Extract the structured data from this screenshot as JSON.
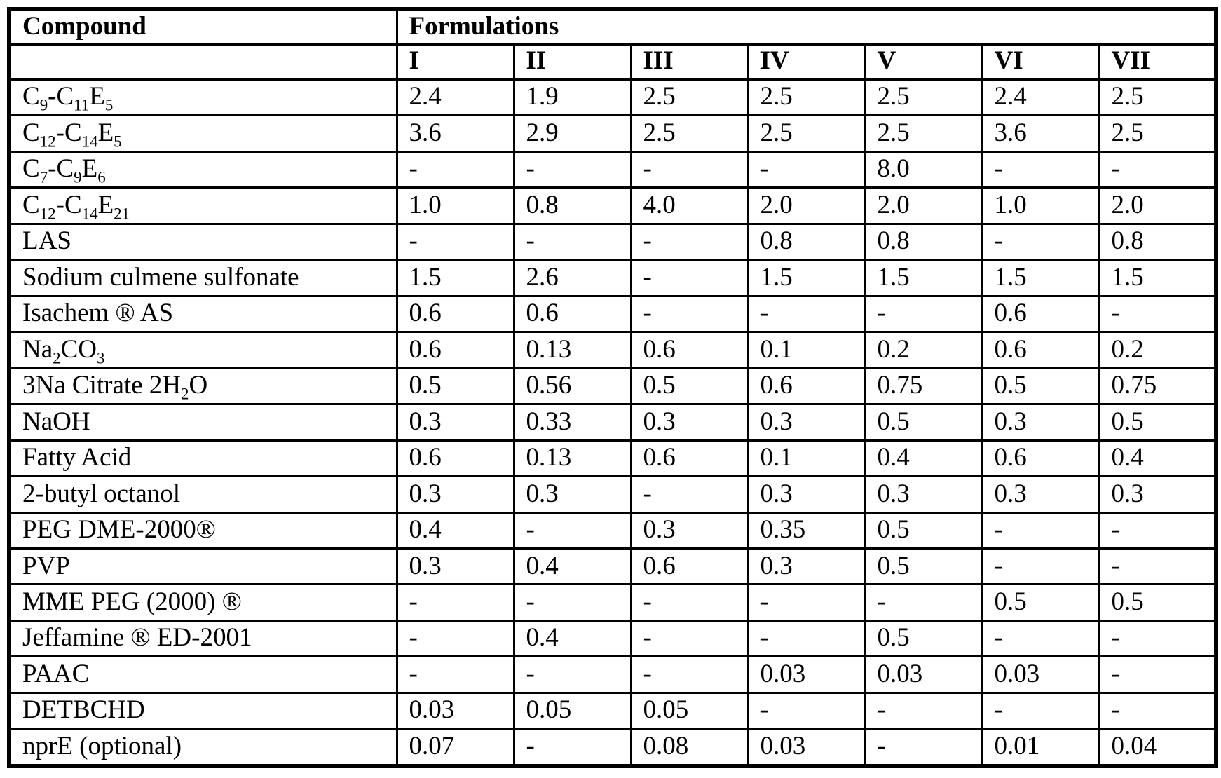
{
  "table": {
    "compound_header": "Compound",
    "formulations_header": "Formulations",
    "formulation_columns": [
      "I",
      "II",
      "III",
      "IV",
      "V",
      "VI",
      "VII"
    ],
    "rows": [
      {
        "compound_html": "C<sub>9</sub>-C<sub>11</sub>E<sub>5</sub>",
        "values": [
          "2.4",
          "1.9",
          "2.5",
          "2.5",
          "2.5",
          "2.4",
          "2.5"
        ]
      },
      {
        "compound_html": "C<sub>12</sub>-C<sub>14</sub>E<sub>5</sub>",
        "values": [
          "3.6",
          "2.9",
          "2.5",
          "2.5",
          "2.5",
          "3.6",
          "2.5"
        ]
      },
      {
        "compound_html": "C<sub>7</sub>-C<sub>9</sub>E<sub>6</sub>",
        "values": [
          "-",
          "-",
          "-",
          "-",
          "8.0",
          "-",
          "-"
        ]
      },
      {
        "compound_html": "C<sub>12</sub>-C<sub>14</sub>E<sub>21</sub>",
        "values": [
          "1.0",
          "0.8",
          "4.0",
          "2.0",
          "2.0",
          "1.0",
          "2.0"
        ]
      },
      {
        "compound_html": "LAS",
        "values": [
          "-",
          "-",
          "-",
          "0.8",
          "0.8",
          "-",
          "0.8"
        ]
      },
      {
        "compound_html": "Sodium culmene sulfonate",
        "values": [
          "1.5",
          "2.6",
          "-",
          "1.5",
          "1.5",
          "1.5",
          "1.5"
        ]
      },
      {
        "compound_html": "Isachem ® AS",
        "values": [
          "0.6",
          "0.6",
          "-",
          "-",
          "-",
          "0.6",
          "-"
        ]
      },
      {
        "compound_html": "Na<sub>2</sub>CO<sub>3</sub>",
        "values": [
          "0.6",
          "0.13",
          "0.6",
          "0.1",
          "0.2",
          "0.6",
          "0.2"
        ]
      },
      {
        "compound_html": "3Na Citrate 2H<sub>2</sub>O",
        "values": [
          "0.5",
          "0.56",
          "0.5",
          "0.6",
          "0.75",
          "0.5",
          "0.75"
        ]
      },
      {
        "compound_html": "NaOH",
        "values": [
          "0.3",
          "0.33",
          "0.3",
          "0.3",
          "0.5",
          "0.3",
          "0.5"
        ]
      },
      {
        "compound_html": "Fatty Acid",
        "values": [
          "0.6",
          "0.13",
          "0.6",
          "0.1",
          "0.4",
          "0.6",
          "0.4"
        ]
      },
      {
        "compound_html": "2-butyl octanol",
        "values": [
          "0.3",
          "0.3",
          "-",
          "0.3",
          "0.3",
          "0.3",
          "0.3"
        ]
      },
      {
        "compound_html": "PEG DME-2000®",
        "values": [
          "0.4",
          "-",
          "0.3",
          "0.35",
          "0.5",
          "-",
          "-"
        ]
      },
      {
        "compound_html": "PVP",
        "values": [
          "0.3",
          "0.4",
          "0.6",
          "0.3",
          "0.5",
          "-",
          "-"
        ]
      },
      {
        "compound_html": "MME PEG (2000) ®",
        "values": [
          "-",
          "-",
          "-",
          "-",
          "-",
          "0.5",
          "0.5"
        ]
      },
      {
        "compound_html": "Jeffamine ® ED-2001",
        "values": [
          "-",
          "0.4",
          "-",
          "-",
          "0.5",
          "-",
          "-"
        ]
      },
      {
        "compound_html": "PAAC",
        "values": [
          "-",
          "-",
          "-",
          "0.03",
          "0.03",
          "0.03",
          "-"
        ]
      },
      {
        "compound_html": "DETBCHD",
        "values": [
          "0.03",
          "0.05",
          "0.05",
          "-",
          "-",
          "-",
          "-"
        ]
      },
      {
        "compound_html": "nprE (optional)",
        "values": [
          "0.07",
          "-",
          "0.08",
          "0.03",
          "-",
          "0.01",
          "0.04"
        ]
      }
    ]
  }
}
